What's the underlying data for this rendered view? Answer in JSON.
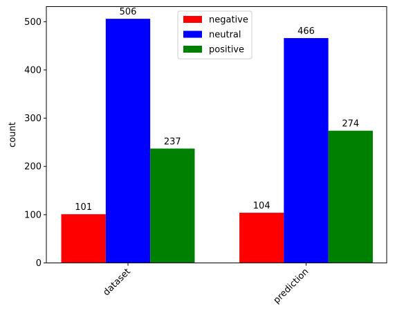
{
  "chart_data": {
    "type": "bar",
    "categories": [
      "dataset",
      "prediction"
    ],
    "series": [
      {
        "name": "negative",
        "color": "#ff0000",
        "values": [
          101,
          104
        ]
      },
      {
        "name": "neutral",
        "color": "#0000ff",
        "values": [
          506,
          466
        ]
      },
      {
        "name": "positive",
        "color": "#008000",
        "values": [
          237,
          274
        ]
      }
    ],
    "title": "",
    "xlabel": "",
    "ylabel": "count",
    "ylim": [
      0,
      531.3
    ],
    "yticks": [
      0,
      100,
      200,
      300,
      400,
      500
    ],
    "xtick_rotation_deg": 45,
    "legend_position": "upper center",
    "grid": false
  }
}
